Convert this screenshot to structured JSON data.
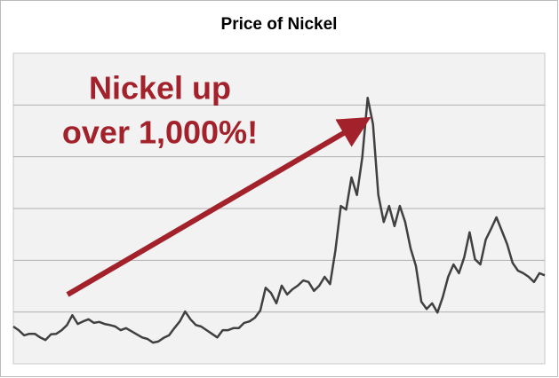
{
  "chart_data": {
    "type": "line",
    "title": "Price of Nickel",
    "annotation": [
      "Nickel up",
      "over 1,000%!"
    ],
    "color": "#404040",
    "annotation_color": "#a3212a",
    "grid": true,
    "ylim": [
      0,
      6
    ],
    "yticks": [
      1,
      2,
      3,
      4,
      5
    ],
    "values": [
      0.72,
      0.65,
      0.55,
      0.58,
      0.58,
      0.51,
      0.46,
      0.57,
      0.58,
      0.65,
      0.75,
      0.94,
      0.77,
      0.82,
      0.86,
      0.79,
      0.81,
      0.77,
      0.75,
      0.72,
      0.65,
      0.69,
      0.63,
      0.57,
      0.51,
      0.48,
      0.41,
      0.43,
      0.5,
      0.55,
      0.69,
      0.82,
      1.01,
      0.86,
      0.75,
      0.72,
      0.65,
      0.58,
      0.51,
      0.65,
      0.65,
      0.69,
      0.69,
      0.79,
      0.82,
      0.89,
      1.03,
      1.47,
      1.37,
      1.17,
      1.51,
      1.34,
      1.44,
      1.51,
      1.61,
      1.58,
      1.41,
      1.51,
      1.68,
      1.54,
      2.19,
      3.05,
      2.98,
      3.6,
      3.26,
      3.98,
      5.14,
      4.63,
      3.26,
      2.74,
      3.05,
      2.66,
      3.05,
      2.74,
      2.23,
      1.89,
      1.2,
      1.06,
      1.17,
      0.99,
      1.29,
      1.68,
      1.92,
      1.75,
      2.06,
      2.54,
      2.02,
      1.92,
      2.4,
      2.61,
      2.83,
      2.57,
      2.31,
      1.95,
      1.8,
      1.75,
      1.68,
      1.58,
      1.75,
      1.71
    ]
  }
}
